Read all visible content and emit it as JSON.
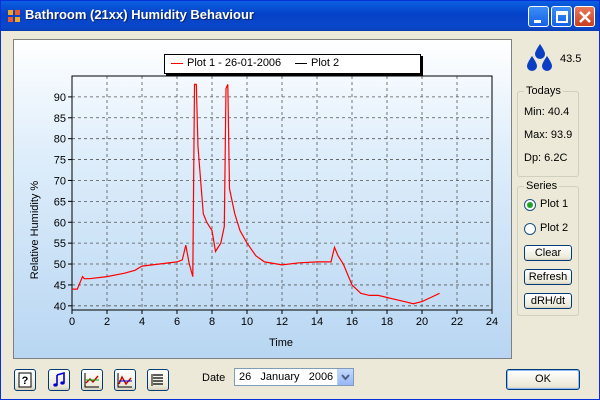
{
  "window": {
    "title": "Bathroom (21xx) Humidity Behaviour",
    "controls": [
      "minimize",
      "maximize",
      "close"
    ]
  },
  "legend": {
    "items": [
      {
        "label": "Plot 1 - 26-01-2006",
        "color": "#ff0000"
      },
      {
        "label": "Plot 2",
        "color": "#000000"
      }
    ]
  },
  "current": {
    "value": "43.5",
    "icon": "water-drops-icon"
  },
  "todays": {
    "title": "Todays",
    "min": "Min: 40.4",
    "max": "Max: 93.9",
    "dp": "Dp: 6.2C"
  },
  "series": {
    "title": "Series",
    "options": [
      {
        "label": "Plot 1",
        "selected": true
      },
      {
        "label": "Plot 2",
        "selected": false
      }
    ],
    "clear_label": "Clear",
    "refresh_label": "Refresh",
    "drh_label": "dRH/dt"
  },
  "toolbar": {
    "icons": [
      "help-icon",
      "music-note-icon",
      "line-chart-icon",
      "line-chart-alt-icon",
      "report-list-icon"
    ]
  },
  "date": {
    "label": "Date",
    "value": "26   January   2006"
  },
  "ok_label": "OK",
  "chart_data": {
    "type": "line",
    "xlabel": "Time",
    "ylabel": "Relative Humidity %",
    "xlim": [
      0,
      24
    ],
    "ylim": [
      39,
      95
    ],
    "xticks": [
      "0",
      "2",
      "4",
      "6",
      "8",
      "10",
      "12",
      "14",
      "16",
      "18",
      "20",
      "22",
      "24"
    ],
    "yticks": [
      "40",
      "45",
      "50",
      "55",
      "60",
      "65",
      "70",
      "75",
      "80",
      "85",
      "90"
    ],
    "grid": true,
    "legend_position": "top",
    "series": [
      {
        "name": "Plot 1 - 26-01-2006",
        "color": "#ff0000",
        "x": [
          0,
          0.3,
          0.5,
          0.6,
          0.7,
          1,
          2,
          3,
          3.6,
          4,
          5,
          6,
          6.3,
          6.5,
          6.7,
          6.9,
          7.0,
          7.1,
          7.2,
          7.5,
          7.7,
          8.0,
          8.2,
          8.5,
          8.7,
          8.8,
          8.9,
          9.0,
          9.3,
          9.6,
          10,
          10.5,
          11,
          12,
          13,
          14,
          14.8,
          15.0,
          15.2,
          15.5,
          16,
          16.5,
          17,
          17.5,
          18,
          18.5,
          19,
          19.5,
          20,
          20.5,
          21
        ],
        "y": [
          44,
          44,
          46,
          47,
          46.5,
          46.5,
          47,
          47.8,
          48.5,
          49.5,
          50,
          50.5,
          51,
          54.5,
          50,
          47,
          93,
          93,
          78,
          62,
          60,
          58,
          53,
          55,
          59,
          92,
          93,
          68,
          62,
          58,
          55,
          52,
          50.5,
          49.8,
          50.3,
          50.5,
          50.5,
          54,
          52,
          50,
          45,
          43,
          42.5,
          42.5,
          42,
          41.5,
          41,
          40.5,
          41,
          42,
          43
        ]
      }
    ]
  }
}
